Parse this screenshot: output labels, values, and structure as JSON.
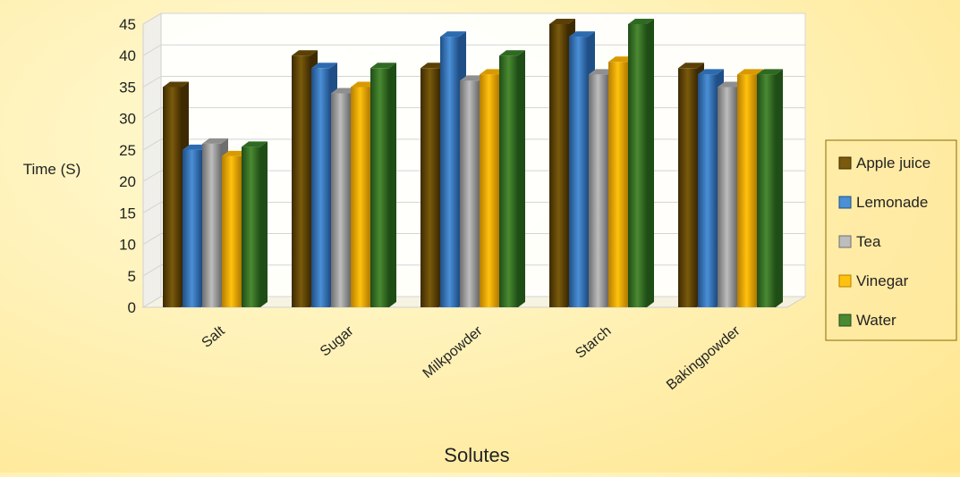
{
  "chart_data": {
    "type": "bar",
    "categories": [
      "Salt",
      "Sugar",
      "Milkpowder",
      "Starch",
      "Bakingpowder"
    ],
    "series": [
      {
        "name": "Apple juice",
        "values": [
          35,
          40,
          38,
          45,
          38
        ]
      },
      {
        "name": "Lemonade",
        "values": [
          25,
          38,
          43,
          43,
          37
        ]
      },
      {
        "name": "Tea",
        "values": [
          26,
          34,
          36,
          37,
          35
        ]
      },
      {
        "name": "Vinegar",
        "values": [
          24,
          35,
          37,
          39,
          37
        ]
      },
      {
        "name": "Water",
        "values": [
          25.5,
          38,
          40,
          45,
          37
        ]
      }
    ],
    "colors": {
      "Apple juice": [
        "#3d2a02",
        "#7a5a0c",
        "#5a4006"
      ],
      "Lemonade": [
        "#1f4f86",
        "#4b8fd6",
        "#2d6bb0"
      ],
      "Tea": [
        "#6e6e6e",
        "#bdbdbd",
        "#8f8f8f"
      ],
      "Vinegar": [
        "#b77d00",
        "#ffc20e",
        "#d89a00"
      ],
      "Water": [
        "#1f4d16",
        "#4a8a32",
        "#2f6a22"
      ]
    },
    "xlabel": "Solutes",
    "ylabel": "Time (S)",
    "ylim": [
      0,
      45
    ],
    "yticks": [
      0,
      5,
      10,
      15,
      20,
      25,
      30,
      35,
      40,
      45
    ],
    "grid": true,
    "legend_position": "right",
    "style": "3d-clustered-column"
  }
}
